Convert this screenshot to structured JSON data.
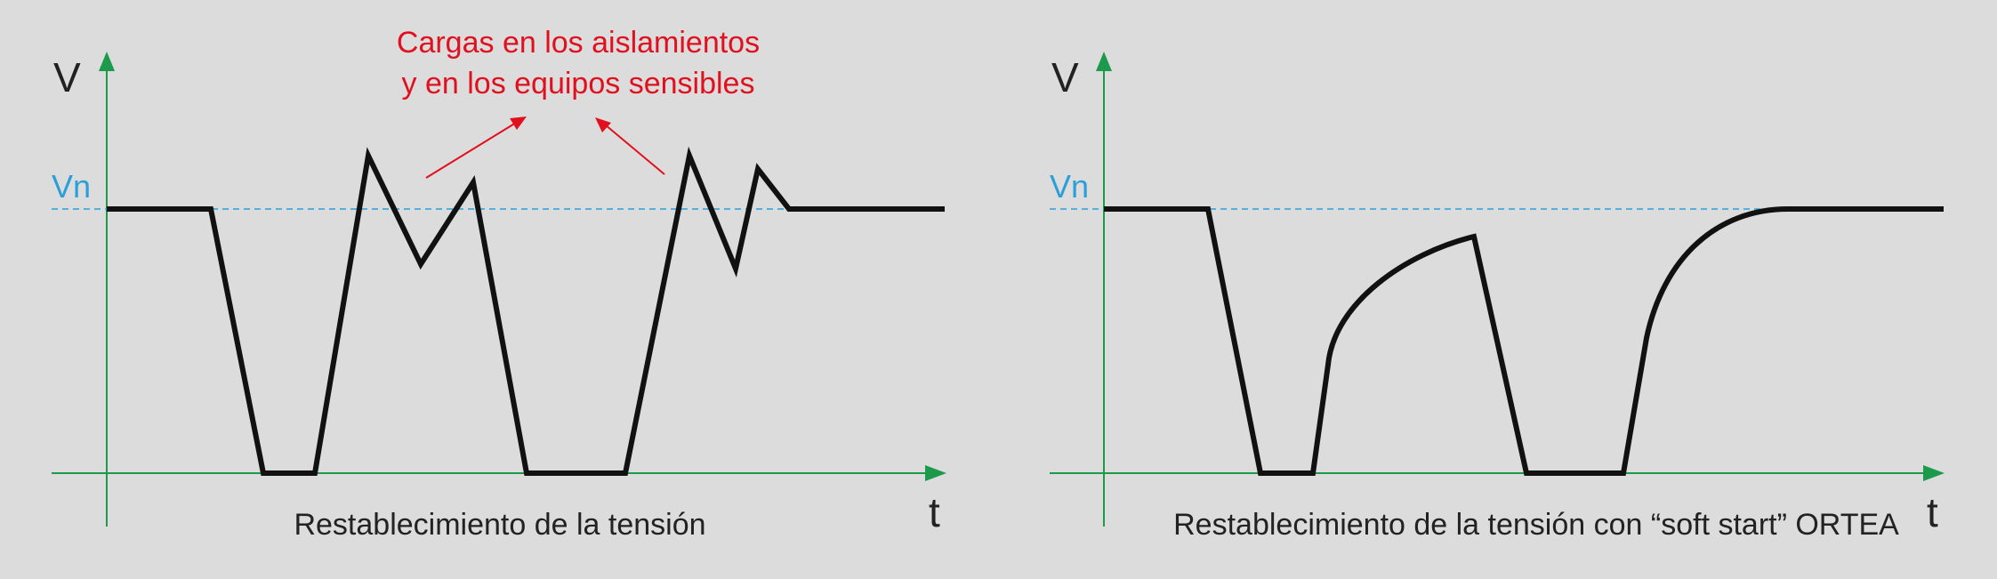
{
  "colors": {
    "background": "#dcdcdc",
    "axis": "#1a9a4a",
    "signal": "#111111",
    "nominal": "#2a9fd8",
    "annotation": "#e0101f",
    "text": "#222222"
  },
  "left_panel": {
    "y_axis_label": "V",
    "x_axis_label": "t",
    "nominal_label": "Vn",
    "caption": "Restablecimiento de la tensión",
    "annotation_line1": "Cargas en los aislamientos",
    "annotation_line2": "y en los equipos sensibles"
  },
  "right_panel": {
    "y_axis_label": "V",
    "x_axis_label": "t",
    "nominal_label": "Vn",
    "caption": "Restablecimiento de la tensión con “soft start” ORTEA"
  }
}
